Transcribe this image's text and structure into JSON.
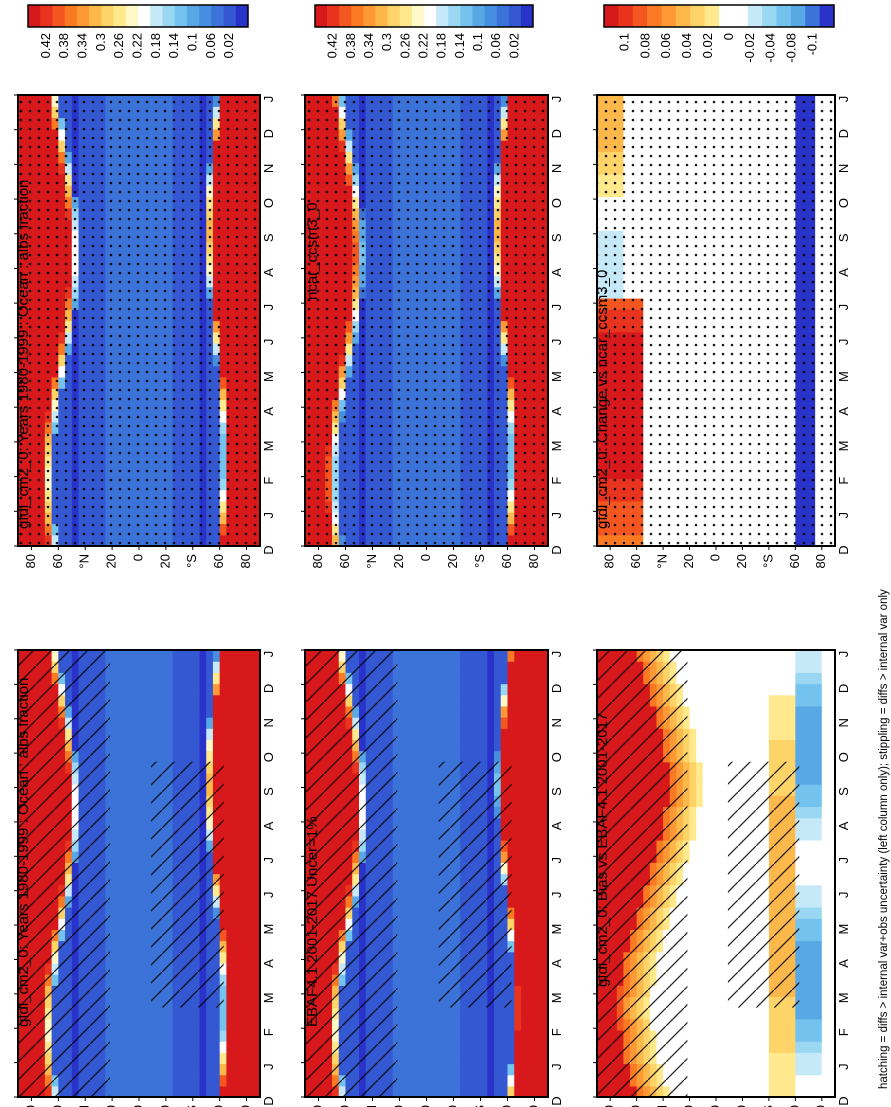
{
  "footnote": "hatching = diffs > internal var+obs uncertainty (left column only); stippling = diffs > internal var only",
  "months": [
    "D",
    "J",
    "F",
    "M",
    "A",
    "M",
    "J",
    "J",
    "A",
    "S",
    "O",
    "N",
    "D",
    "J"
  ],
  "lat_ticks": [
    "80",
    "60",
    "°N",
    "20",
    "0",
    "20",
    "°S",
    "60",
    "80"
  ],
  "colors": {
    "field_scale": [
      "#d7191c",
      "#e8341f",
      "#f4561f",
      "#fa7a24",
      "#fd9a35",
      "#fdb84b",
      "#fed469",
      "#ffe98c",
      "#fff9c8",
      "#ffffff",
      "#c6e9f8",
      "#9ad7f3",
      "#74c2ee",
      "#58a8e6",
      "#468ee0",
      "#3b73d8",
      "#3458d2",
      "#2a33c9"
    ],
    "diff_scale": [
      "#d7191c",
      "#e8341f",
      "#f4561f",
      "#fa7a24",
      "#fd9a35",
      "#fdb84b",
      "#fed469",
      "#ffe98c",
      "#ffffff",
      "#ffffff",
      "#c6e9f8",
      "#9ad7f3",
      "#74c2ee",
      "#58a8e6",
      "#3b73d8",
      "#2a33c9"
    ]
  },
  "field_colorbar_labels": [
    "0.42",
    "0.38",
    "0.34",
    "0.3",
    "0.26",
    "0.22",
    "0.18",
    "0.14",
    "0.1",
    "0.06",
    "0.02"
  ],
  "diff_colorbar_labels": [
    "0.1",
    "0.08",
    "0.06",
    "0.04",
    "0.02",
    "0",
    "-0.02",
    "-0.04",
    "-0.08",
    "-0.1"
  ],
  "panels": [
    {
      "title": "gfdl_cm2_0: Years 1980-1999 : Ocean : albs fraction",
      "kind": "field",
      "overlay": "hatch"
    },
    {
      "title": "gfdl_cm2_0: Years 1980-1999 : Ocean : albs fraction",
      "kind": "field",
      "overlay": "dots"
    },
    {
      "title": "EBAF4.1 2001-2017 Uncer=1%",
      "kind": "field",
      "overlay": "hatch"
    },
    {
      "title": "ncar_ccsm3_0",
      "kind": "field",
      "overlay": "dots"
    },
    {
      "title": "gfdl_cm2_0: Bias vs EBAF4.1 2001-2017",
      "kind": "diff",
      "overlay": "hatch"
    },
    {
      "title": "gfdl_cm2_0: Change vs ncar_ccsm3_0",
      "kind": "diff",
      "overlay": "dots"
    }
  ],
  "chart_data": {
    "type": "heatmap",
    "x": [
      "D",
      "J",
      "F",
      "M",
      "A",
      "M",
      "J",
      "J",
      "A",
      "S",
      "O",
      "N",
      "D",
      "J"
    ],
    "y": [
      "80°N",
      "60°N",
      "20°N",
      "0",
      "20°S",
      "60°S",
      "80°S"
    ],
    "zlim_field": [
      0.02,
      0.42
    ],
    "zlim_diff": [
      -0.1,
      0.1
    ],
    "orientation": "page rotated 90° counter-clockwise"
  }
}
